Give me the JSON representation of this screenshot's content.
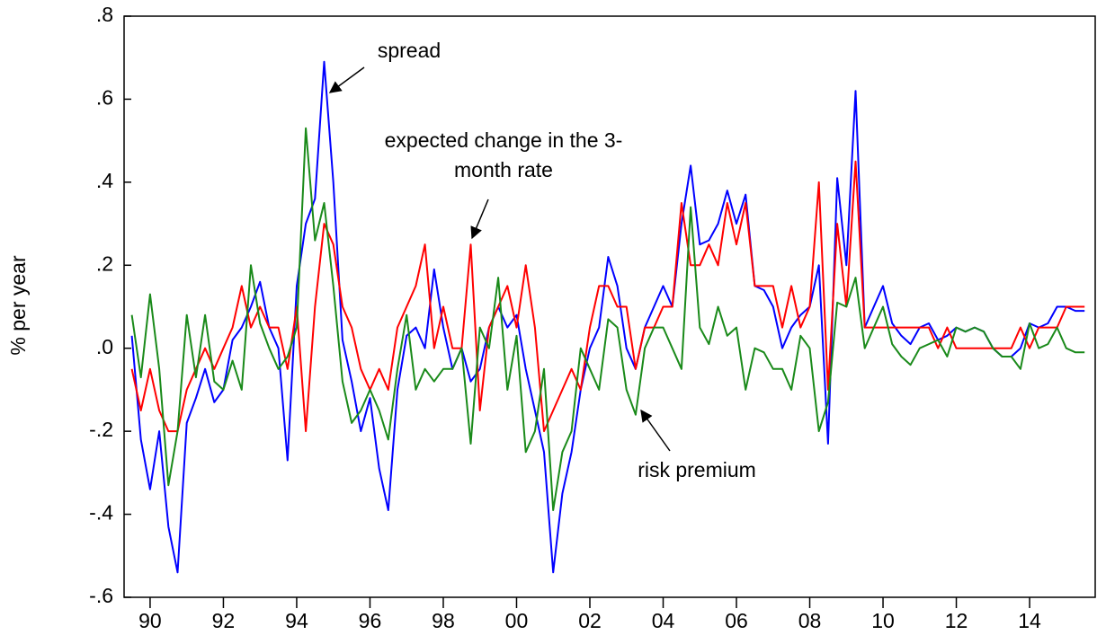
{
  "chart_data": {
    "type": "line",
    "y_label": "% per year",
    "xlim": [
      1989.29,
      2015.79
    ],
    "xticks": [
      {
        "value": 1990,
        "label": "90"
      },
      {
        "value": 1992,
        "label": "92"
      },
      {
        "value": 1994,
        "label": "94"
      },
      {
        "value": 1996,
        "label": "96"
      },
      {
        "value": 1998,
        "label": "98"
      },
      {
        "value": 2000,
        "label": "00"
      },
      {
        "value": 2002,
        "label": "02"
      },
      {
        "value": 2004,
        "label": "04"
      },
      {
        "value": 2006,
        "label": "06"
      },
      {
        "value": 2008,
        "label": "08"
      },
      {
        "value": 2010,
        "label": "10"
      },
      {
        "value": 2012,
        "label": "12"
      },
      {
        "value": 2014,
        "label": "14"
      }
    ],
    "ylim": [
      -0.6,
      0.8
    ],
    "yticks": [
      {
        "value": 0.8,
        "label": ".8"
      },
      {
        "value": 0.6,
        "label": ".6"
      },
      {
        "value": 0.4,
        "label": ".4"
      },
      {
        "value": 0.2,
        "label": ".2"
      },
      {
        "value": 0,
        "label": ".0"
      },
      {
        "value": -0.2,
        "label": "-.2"
      },
      {
        "value": -0.4,
        "label": "-.4"
      },
      {
        "value": -0.6,
        "label": "-.6"
      }
    ],
    "x": [
      1989.5,
      1989.75,
      1990,
      1990.25,
      1990.5,
      1990.75,
      1991,
      1991.25,
      1991.5,
      1991.75,
      1992,
      1992.25,
      1992.5,
      1992.75,
      1993,
      1993.25,
      1993.5,
      1993.75,
      1994,
      1994.25,
      1994.5,
      1994.75,
      1995,
      1995.25,
      1995.5,
      1995.75,
      1996,
      1996.25,
      1996.5,
      1996.75,
      1997,
      1997.25,
      1997.5,
      1997.75,
      1998,
      1998.25,
      1998.5,
      1998.75,
      1999,
      1999.25,
      1999.5,
      1999.75,
      2000,
      2000.25,
      2000.5,
      2000.75,
      2001,
      2001.25,
      2001.5,
      2001.75,
      2002,
      2002.25,
      2002.5,
      2002.75,
      2003,
      2003.25,
      2003.5,
      2003.75,
      2004,
      2004.25,
      2004.5,
      2004.75,
      2005,
      2005.25,
      2005.5,
      2005.75,
      2006,
      2006.25,
      2006.5,
      2006.75,
      2007,
      2007.25,
      2007.5,
      2007.75,
      2008,
      2008.25,
      2008.5,
      2008.75,
      2009,
      2009.25,
      2009.5,
      2009.75,
      2010,
      2010.25,
      2010.5,
      2010.75,
      2011,
      2011.25,
      2011.5,
      2011.75,
      2012,
      2012.25,
      2012.5,
      2012.75,
      2013,
      2013.25,
      2013.5,
      2013.75,
      2014,
      2014.25,
      2014.5,
      2014.75,
      2015,
      2015.25,
      2015.5
    ],
    "series": [
      {
        "name": "spread",
        "color": "#0000ff",
        "values": [
          0.03,
          -0.22,
          -0.34,
          -0.2,
          -0.43,
          -0.54,
          -0.18,
          -0.12,
          -0.05,
          -0.13,
          -0.1,
          0.02,
          0.05,
          0.1,
          0.16,
          0.05,
          0,
          -0.27,
          0.15,
          0.3,
          0.36,
          0.69,
          0.4,
          0.02,
          -0.08,
          -0.2,
          -0.12,
          -0.29,
          -0.39,
          -0.1,
          0.03,
          0.05,
          0,
          0.19,
          0.05,
          -0.05,
          0,
          -0.08,
          -0.05,
          0.05,
          0.1,
          0.05,
          0.08,
          -0.05,
          -0.15,
          -0.25,
          -0.54,
          -0.35,
          -0.25,
          -0.1,
          0,
          0.05,
          0.22,
          0.15,
          0,
          -0.05,
          0.05,
          0.1,
          0.15,
          0.1,
          0.3,
          0.44,
          0.25,
          0.26,
          0.3,
          0.38,
          0.3,
          0.37,
          0.15,
          0.14,
          0.1,
          0,
          0.05,
          0.08,
          0.1,
          0.2,
          -0.23,
          0.41,
          0.2,
          0.62,
          0.05,
          0.1,
          0.15,
          0.06,
          0.03,
          0.01,
          0.05,
          0.06,
          0.02,
          0.03,
          0.05,
          0.04,
          0.05,
          0.04,
          0,
          -0.02,
          -0.02,
          0,
          0.06,
          0.05,
          0.06,
          0.1,
          0.1,
          0.09,
          0.09
        ]
      },
      {
        "name": "expected change in the 3-month rate",
        "color": "#ff0000",
        "values": [
          -0.05,
          -0.15,
          -0.05,
          -0.15,
          -0.2,
          -0.2,
          -0.1,
          -0.05,
          0,
          -0.05,
          0,
          0.05,
          0.15,
          0.05,
          0.1,
          0.05,
          0.05,
          -0.05,
          0.1,
          -0.2,
          0.1,
          0.3,
          0.25,
          0.1,
          0.05,
          -0.05,
          -0.1,
          -0.05,
          -0.1,
          0.05,
          0.1,
          0.15,
          0.25,
          0,
          0.1,
          0,
          0,
          0.25,
          -0.15,
          0.05,
          0.1,
          0.15,
          0.05,
          0.2,
          0.05,
          -0.2,
          -0.15,
          -0.1,
          -0.05,
          -0.1,
          0.05,
          0.15,
          0.15,
          0.1,
          0.1,
          -0.05,
          0.05,
          0.05,
          0.1,
          0.1,
          0.35,
          0.2,
          0.2,
          0.25,
          0.2,
          0.35,
          0.25,
          0.35,
          0.15,
          0.15,
          0.15,
          0.05,
          0.15,
          0.05,
          0.1,
          0.4,
          -0.1,
          0.3,
          0.1,
          0.45,
          0.05,
          0.05,
          0.05,
          0.05,
          0.05,
          0.05,
          0.05,
          0.05,
          0,
          0.05,
          0,
          0,
          0,
          0,
          0,
          0,
          0,
          0.05,
          0,
          0.05,
          0.05,
          0.05,
          0.1,
          0.1,
          0.1
        ]
      },
      {
        "name": "risk premium",
        "color": "#1a8a1a",
        "values": [
          0.08,
          -0.07,
          0.13,
          -0.05,
          -0.33,
          -0.2,
          0.08,
          -0.07,
          0.08,
          -0.08,
          -0.1,
          -0.03,
          -0.1,
          0.2,
          0.06,
          0,
          -0.05,
          -0.02,
          0.05,
          0.53,
          0.26,
          0.35,
          0.15,
          -0.08,
          -0.18,
          -0.15,
          -0.1,
          -0.15,
          -0.22,
          -0.05,
          0.08,
          -0.1,
          -0.05,
          -0.08,
          -0.05,
          -0.05,
          0,
          -0.23,
          0.05,
          0,
          0.17,
          -0.1,
          0.03,
          -0.25,
          -0.2,
          -0.05,
          -0.39,
          -0.25,
          -0.2,
          0,
          -0.05,
          -0.1,
          0.07,
          0.05,
          -0.1,
          -0.16,
          0,
          0.05,
          0.05,
          0,
          -0.05,
          0.34,
          0.05,
          0.01,
          0.1,
          0.03,
          0.05,
          -0.1,
          0,
          -0.01,
          -0.05,
          -0.05,
          -0.1,
          0.03,
          0,
          -0.2,
          -0.13,
          0.11,
          0.1,
          0.17,
          0,
          0.05,
          0.1,
          0.01,
          -0.02,
          -0.04,
          0,
          0.01,
          0.02,
          -0.02,
          0.05,
          0.04,
          0.05,
          0.04,
          0,
          -0.02,
          -0.02,
          -0.05,
          0.06,
          0,
          0.01,
          0.05,
          0,
          -0.01,
          -0.01
        ]
      }
    ]
  }
}
